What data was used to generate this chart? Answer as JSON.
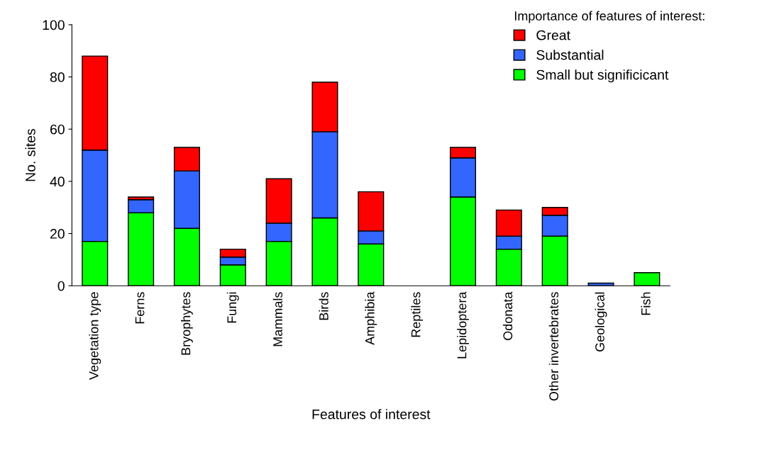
{
  "chart_data": {
    "type": "bar",
    "stacked": true,
    "xlabel": "Features of interest",
    "ylabel": "No. sites",
    "legend_title": "Importance of features of interest:",
    "legend": "top right",
    "grid": false,
    "categories": [
      "Vegetation type",
      "Ferns",
      "Bryophytes",
      "Fungi",
      "Mammals",
      "Birds",
      "Amphibia",
      "Reptiles",
      "Lepidoptera",
      "Odonata",
      "Other invertebrates",
      "Geological",
      "Fish"
    ],
    "ylim": [
      0,
      100
    ],
    "yticks": [
      0,
      20,
      40,
      60,
      80,
      100
    ],
    "series": [
      {
        "name": "Small but significicant",
        "color": "#00ff00",
        "values": [
          17,
          28,
          22,
          8,
          17,
          26,
          16,
          null,
          34,
          14,
          19,
          null,
          5
        ]
      },
      {
        "name": "Substantial",
        "color": "#3366ff",
        "values": [
          35,
          5,
          22,
          3,
          7,
          33,
          5,
          null,
          15,
          5,
          8,
          1,
          null
        ]
      },
      {
        "name": "Great",
        "color": "#ff0000",
        "values": [
          36,
          1,
          9,
          3,
          17,
          19,
          15,
          null,
          4,
          10,
          3,
          null,
          null
        ]
      }
    ]
  }
}
